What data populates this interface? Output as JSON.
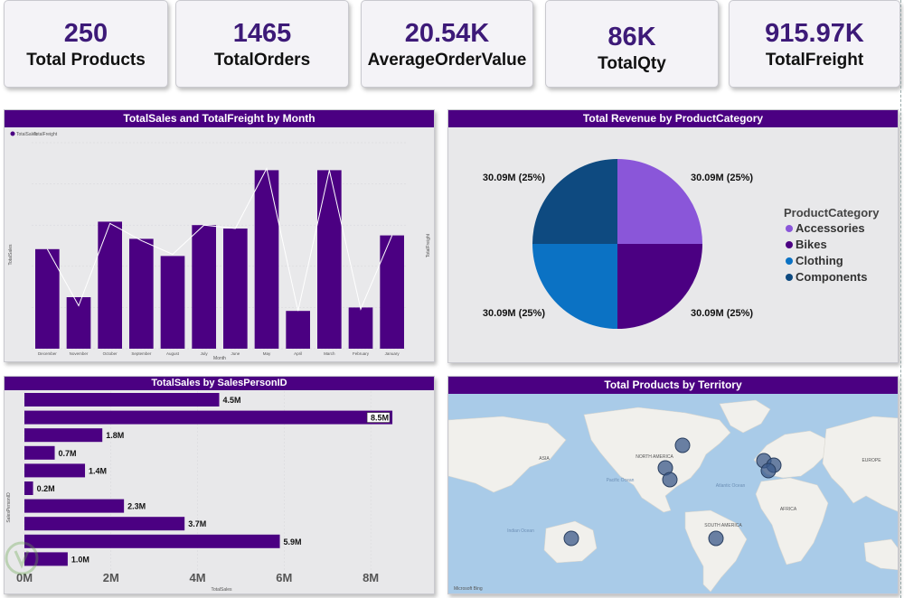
{
  "kpis": [
    {
      "value": "250",
      "label": "Total Products"
    },
    {
      "value": "1465",
      "label": "TotalOrders"
    },
    {
      "value": "20.54K",
      "label": "AverageOrderValue"
    },
    {
      "value": "86K",
      "label": "TotalQty"
    },
    {
      "value": "915.97K",
      "label": "TotalFreight"
    }
  ],
  "month_chart": {
    "title": "TotalSales and TotalFreight by Month",
    "legend": [
      "TotalSales",
      "TotalFreight"
    ],
    "xlabel": "Month",
    "ylabel": "TotalSales",
    "y2label": "TotalFreight"
  },
  "pie_chart": {
    "title": "Total Revenue by ProductCategory",
    "legend_title": "ProductCategory"
  },
  "bar_chart": {
    "title": "TotalSales by SalesPersonID",
    "xlabel": "TotalSales",
    "ylabel": "SalesPersonID"
  },
  "map": {
    "title": "Total Products by Territory",
    "labels": [
      "NORTH AMERICA",
      "SOUTH AMERICA",
      "AFRICA",
      "ASIA",
      "EUROPE",
      "Atlantic Ocean",
      "Pacific Ocean",
      "Indian Ocean"
    ],
    "attribution": "Microsoft Bing"
  },
  "chart_data": [
    {
      "type": "bar",
      "title": "TotalSales and TotalFreight by Month",
      "categories": [
        "December",
        "November",
        "October",
        "September",
        "August",
        "July",
        "June",
        "May",
        "April",
        "March",
        "February",
        "January"
      ],
      "series": [
        {
          "name": "TotalSales",
          "values": [
            2.9,
            1.5,
            3.7,
            3.2,
            2.7,
            3.6,
            3.5,
            5.2,
            1.1,
            5.2,
            1.2,
            3.3
          ]
        },
        {
          "name": "TotalFreight",
          "values": [
            58,
            25,
            73,
            63,
            55,
            72,
            70,
            105,
            22,
            104,
            23,
            66
          ]
        }
      ],
      "xlabel": "Month",
      "ylabel": "TotalSales",
      "y2label": "TotalFreight",
      "ylim": [
        0,
        6
      ],
      "y2lim": [
        0,
        120
      ]
    },
    {
      "type": "pie",
      "title": "Total Revenue by ProductCategory",
      "categories": [
        "Accessories",
        "Bikes",
        "Clothing",
        "Components"
      ],
      "values": [
        30.09,
        30.09,
        30.09,
        30.09
      ],
      "labels": [
        "30.09M (25%)",
        "30.09M (25%)",
        "30.09M (25%)",
        "30.09M (25%)"
      ],
      "colors": [
        "#8a56d9",
        "#4b0082",
        "#0b72c4",
        "#0e4a80"
      ]
    },
    {
      "type": "bar",
      "orientation": "horizontal",
      "title": "TotalSales by SalesPersonID",
      "values": [
        4.5,
        8.5,
        1.8,
        0.7,
        1.4,
        0.2,
        2.3,
        3.7,
        5.9,
        1.0
      ],
      "labels": [
        "4.5M",
        "8.5M",
        "1.8M",
        "0.7M",
        "1.4M",
        "0.2M",
        "2.3M",
        "3.7M",
        "5.9M",
        "1.0M"
      ],
      "xticks": [
        "0M",
        "2M",
        "4M",
        "6M",
        "8M"
      ],
      "xlim": [
        0,
        9
      ],
      "xlabel": "TotalSales",
      "ylabel": "SalesPersonID"
    }
  ],
  "colors": {
    "accent": "#4b0082",
    "kpi_text": "#3d1a78",
    "ocean": "#a9cbe8",
    "land": "#f1f0ec",
    "bubble": "#3b5a8a"
  }
}
